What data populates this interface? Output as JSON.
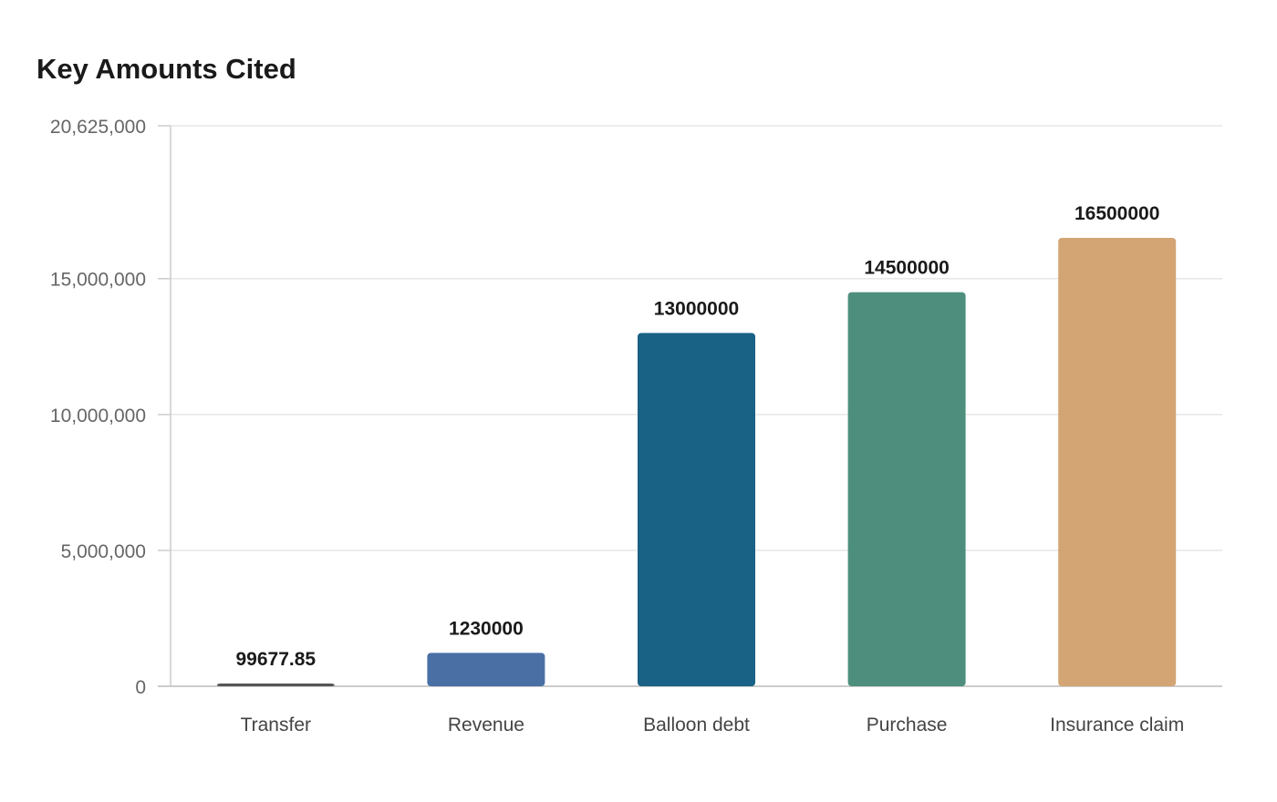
{
  "chart_data": {
    "type": "bar",
    "title": "Key Amounts Cited",
    "xlabel": "",
    "ylabel": "",
    "categories": [
      "Transfer",
      "Revenue",
      "Balloon debt",
      "Purchase",
      "Insurance claim"
    ],
    "values": [
      99677.85,
      1230000,
      13000000,
      14500000,
      16500000
    ],
    "value_labels": [
      "99677.85",
      "1230000",
      "13000000",
      "14500000",
      "16500000"
    ],
    "colors": [
      "#555555",
      "#4a6fa5",
      "#1a6186",
      "#4e8e7d",
      "#d3a574"
    ],
    "ylim": [
      0,
      20625000
    ],
    "yticks": [
      0,
      5000000,
      10000000,
      15000000,
      20625000
    ],
    "ytick_labels": [
      "0",
      "5,000,000",
      "10,000,000",
      "15,000,000",
      "20,625,000"
    ],
    "grid": true,
    "legend": "none"
  }
}
